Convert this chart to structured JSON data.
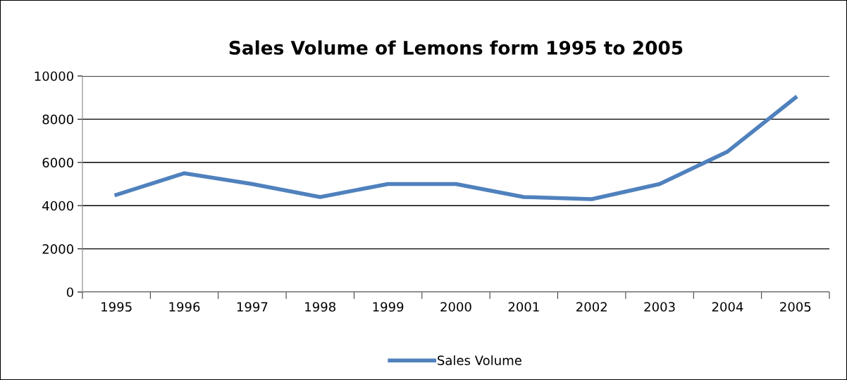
{
  "chart_data": {
    "type": "line",
    "title": "Sales Volume of Lemons form 1995 to 2005",
    "categories": [
      "1995",
      "1996",
      "1997",
      "1998",
      "1999",
      "2000",
      "2001",
      "2002",
      "2003",
      "2004",
      "2005"
    ],
    "series": [
      {
        "name": "Sales Volume",
        "color": "#4f81bd",
        "values": [
          4500,
          5500,
          5000,
          4400,
          5000,
          5000,
          4400,
          4300,
          5000,
          6500,
          9000
        ]
      }
    ],
    "ylim": [
      0,
      10000
    ],
    "yticks": [
      0,
      2000,
      4000,
      6000,
      8000,
      10000
    ],
    "grid": "y",
    "legend": "bottom",
    "marker": "none",
    "line_style": "solid"
  }
}
